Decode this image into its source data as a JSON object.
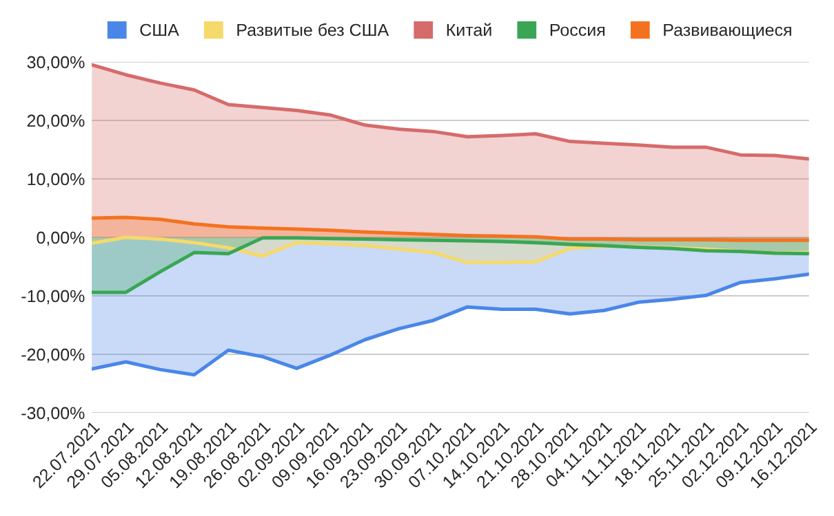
{
  "chart_data": {
    "type": "area",
    "categories": [
      "22.07.2021",
      "29.07.2021",
      "05.08.2021",
      "12.08.2021",
      "19.08.2021",
      "26.08.2021",
      "02.09.2021",
      "09.09.2021",
      "16.09.2021",
      "23.09.2021",
      "30.09.2021",
      "07.10.2021",
      "14.10.2021",
      "21.10.2021",
      "28.10.2021",
      "04.11.2021",
      "11.11.2021",
      "18.11.2021",
      "25.11.2021",
      "02.12.2021",
      "09.12.2021",
      "16.12.2021"
    ],
    "series": [
      {
        "name": "США",
        "color": "#4a86e8",
        "values": [
          -22.5,
          -21.3,
          -22.6,
          -23.5,
          -19.3,
          -20.4,
          -22.4,
          -20.1,
          -17.5,
          -15.6,
          -14.2,
          -11.9,
          -12.3,
          -12.3,
          -13.1,
          -12.5,
          -11.1,
          -10.6,
          -9.9,
          -7.7,
          -7.1,
          -6.3
        ]
      },
      {
        "name": "Развитые без США",
        "color": "#f6d96b",
        "values": [
          -1,
          0,
          -0.3,
          -0.9,
          -1.8,
          -3.2,
          -0.9,
          -1.1,
          -1.4,
          -2.0,
          -2.6,
          -4.3,
          -4.3,
          -4.2,
          -1.9,
          -1.5,
          -1.6,
          -1.8,
          -2.0,
          -2.4,
          -2.7,
          -2.6
        ]
      },
      {
        "name": "Китай",
        "color": "#d66b6b",
        "values": [
          29.5,
          27.8,
          26.4,
          25.2,
          22.7,
          22.2,
          21.7,
          20.9,
          19.2,
          18.5,
          18.1,
          17.2,
          17.4,
          17.7,
          16.4,
          16.1,
          15.8,
          15.4,
          15.4,
          14.1,
          14.0,
          13.4
        ]
      },
      {
        "name": "Россия",
        "color": "#3aa655",
        "values": [
          -9.4,
          -9.4,
          -5.9,
          -2.6,
          -2.8,
          -0.1,
          -0.1,
          -0.2,
          -0.3,
          -0.4,
          -0.5,
          -0.6,
          -0.7,
          -0.9,
          -1.2,
          -1.4,
          -1.7,
          -1.9,
          -2.3,
          -2.4,
          -2.7,
          -2.8
        ]
      },
      {
        "name": "Развивающиеся",
        "color": "#f4721f",
        "values": [
          3.3,
          3.4,
          3.1,
          2.3,
          1.8,
          1.6,
          1.4,
          1.2,
          0.9,
          0.7,
          0.5,
          0.3,
          0.2,
          0.1,
          -0.3,
          -0.3,
          -0.4,
          -0.4,
          -0.4,
          -0.5,
          -0.5,
          -0.5
        ]
      }
    ],
    "ylim": [
      -30,
      30
    ],
    "yticks": [
      {
        "value": -30,
        "label": "-30,00%"
      },
      {
        "value": -20,
        "label": "-20,00%"
      },
      {
        "value": -10,
        "label": "-10,00%"
      },
      {
        "value": 0,
        "label": "0,00%"
      },
      {
        "value": 10,
        "label": "10,00%"
      },
      {
        "value": 20,
        "label": "20,00%"
      },
      {
        "value": 30,
        "label": "30,00%"
      }
    ],
    "grid": "y",
    "legend": "top"
  }
}
